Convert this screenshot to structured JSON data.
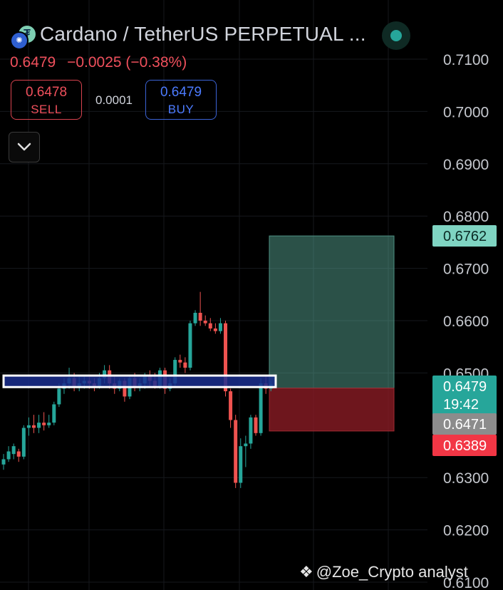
{
  "header": {
    "title": "Cardano / TetherUS PERPETUAL ...",
    "last_price": "0.6479",
    "change": "−0.0025 (−0.38%)"
  },
  "trade": {
    "sell_price": "0.6478",
    "sell_label": "SELL",
    "spread": "0.0001",
    "buy_price": "0.6479",
    "buy_label": "BUY"
  },
  "watermark": "@Zoe_Crypto analyst",
  "colors": {
    "up": "#26a69a",
    "down": "#ef5350",
    "target": "#5fb3a0",
    "stop": "#f23645",
    "zone": "#1b2f8f"
  },
  "chart_data": {
    "type": "candlestick",
    "y_axis": {
      "min": 0.61,
      "max": 0.715,
      "ticks": [
        0.71,
        0.7,
        0.69,
        0.68,
        0.67,
        0.66,
        0.65,
        0.63,
        0.62,
        0.61
      ],
      "tick_labels": [
        "0.7100",
        "0.7000",
        "0.6900",
        "0.6800",
        "0.6700",
        "0.6600",
        "0.6500",
        "0.6300",
        "0.6200",
        "0.6100"
      ]
    },
    "price_labels": [
      {
        "value": 0.6762,
        "text": "0.6762",
        "kind": "target"
      },
      {
        "value": 0.6479,
        "text": "0.6479",
        "sub": "19:42",
        "kind": "last"
      },
      {
        "value": 0.6471,
        "text": "0.6471",
        "kind": "entry"
      },
      {
        "value": 0.6389,
        "text": "0.6389",
        "kind": "stop"
      }
    ],
    "candles": [
      [
        0.6325,
        0.6335,
        0.6315,
        0.6345
      ],
      [
        0.6335,
        0.635,
        0.633,
        0.636
      ],
      [
        0.6345,
        0.636,
        0.6335,
        0.6365
      ],
      [
        0.635,
        0.634,
        0.633,
        0.6355
      ],
      [
        0.634,
        0.6395,
        0.6335,
        0.64
      ],
      [
        0.6395,
        0.64,
        0.638,
        0.6415
      ],
      [
        0.64,
        0.6395,
        0.6385,
        0.642
      ],
      [
        0.6395,
        0.6405,
        0.6385,
        0.642
      ],
      [
        0.6405,
        0.64,
        0.639,
        0.6425
      ],
      [
        0.64,
        0.6405,
        0.6395,
        0.642
      ],
      [
        0.6405,
        0.644,
        0.64,
        0.6445
      ],
      [
        0.644,
        0.647,
        0.6435,
        0.648
      ],
      [
        0.647,
        0.648,
        0.646,
        0.649
      ],
      [
        0.648,
        0.649,
        0.647,
        0.651
      ],
      [
        0.649,
        0.6475,
        0.6465,
        0.65
      ],
      [
        0.6475,
        0.648,
        0.6465,
        0.6495
      ],
      [
        0.648,
        0.6485,
        0.647,
        0.6495
      ],
      [
        0.6485,
        0.648,
        0.647,
        0.6495
      ],
      [
        0.648,
        0.6475,
        0.6465,
        0.649
      ],
      [
        0.6475,
        0.649,
        0.647,
        0.65
      ],
      [
        0.649,
        0.6505,
        0.648,
        0.6515
      ],
      [
        0.6505,
        0.648,
        0.647,
        0.6515
      ],
      [
        0.648,
        0.647,
        0.646,
        0.6495
      ],
      [
        0.647,
        0.6485,
        0.6465,
        0.649
      ],
      [
        0.6485,
        0.6455,
        0.6445,
        0.649
      ],
      [
        0.6455,
        0.649,
        0.645,
        0.6495
      ],
      [
        0.649,
        0.6475,
        0.6465,
        0.65
      ],
      [
        0.6475,
        0.648,
        0.6465,
        0.649
      ],
      [
        0.648,
        0.6495,
        0.647,
        0.65
      ],
      [
        0.6495,
        0.6485,
        0.6475,
        0.6505
      ],
      [
        0.6485,
        0.6475,
        0.647,
        0.65
      ],
      [
        0.6475,
        0.6505,
        0.647,
        0.651
      ],
      [
        0.6505,
        0.647,
        0.646,
        0.651
      ],
      [
        0.647,
        0.648,
        0.6465,
        0.649
      ],
      [
        0.648,
        0.6525,
        0.6475,
        0.653
      ],
      [
        0.6525,
        0.652,
        0.651,
        0.6535
      ],
      [
        0.652,
        0.651,
        0.65,
        0.653
      ],
      [
        0.651,
        0.6595,
        0.6505,
        0.66
      ],
      [
        0.6595,
        0.6615,
        0.659,
        0.662
      ],
      [
        0.6615,
        0.66,
        0.659,
        0.6655
      ],
      [
        0.66,
        0.6595,
        0.659,
        0.661
      ],
      [
        0.6595,
        0.6585,
        0.658,
        0.6605
      ],
      [
        0.6585,
        0.658,
        0.6575,
        0.6595
      ],
      [
        0.658,
        0.6595,
        0.6575,
        0.6605
      ],
      [
        0.6595,
        0.6465,
        0.6455,
        0.66
      ],
      [
        0.6465,
        0.641,
        0.6395,
        0.647
      ],
      [
        0.641,
        0.629,
        0.628,
        0.642
      ],
      [
        0.629,
        0.636,
        0.628,
        0.6375
      ],
      [
        0.636,
        0.6365,
        0.632,
        0.638
      ],
      [
        0.6365,
        0.6415,
        0.6355,
        0.642
      ],
      [
        0.6415,
        0.6385,
        0.638,
        0.642
      ],
      [
        0.6385,
        0.648,
        0.638,
        0.649
      ],
      [
        0.648,
        0.647,
        0.646,
        0.6495
      ],
      [
        0.647,
        0.6479,
        0.6465,
        0.6485
      ]
    ],
    "support_zone": {
      "low": 0.6473,
      "high": 0.6495
    },
    "position": {
      "entry": 0.6471,
      "target": 0.6762,
      "stop": 0.6389
    }
  }
}
